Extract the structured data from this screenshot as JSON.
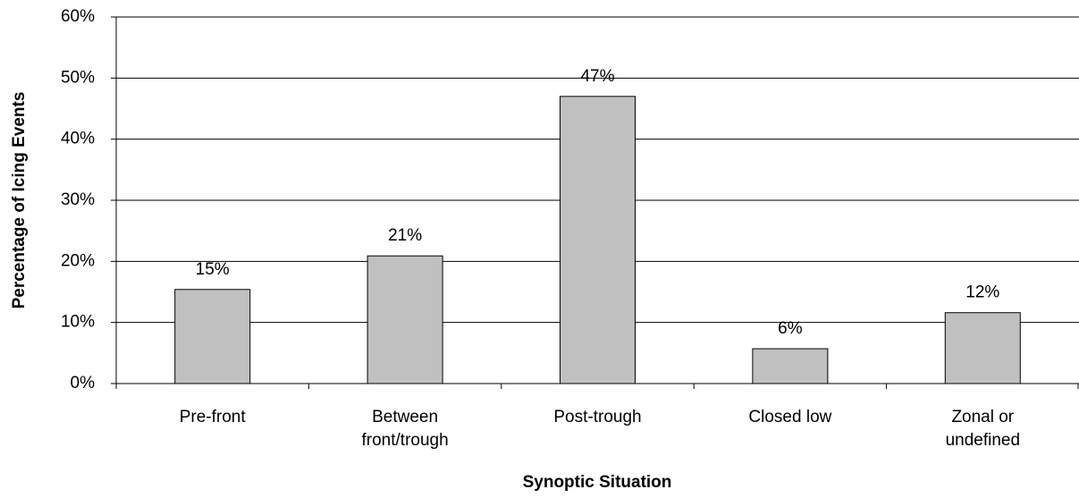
{
  "chart_data": {
    "type": "bar",
    "x_label": "Synoptic Situation",
    "y_label": "Percentage of Icing Events",
    "categories": [
      "Pre-front",
      "Between front/trough",
      "Post-trough",
      "Closed low",
      "Zonal or undefined"
    ],
    "values": [
      15.4,
      20.9,
      47,
      5.7,
      11.6
    ],
    "value_labels": [
      "15%",
      "21%",
      "47%",
      "6%",
      "12%"
    ],
    "color": "#c0c0c0",
    "ylim": [
      0,
      60
    ],
    "yticks": [
      {
        "value": 0,
        "label": "0%"
      },
      {
        "value": 10,
        "label": "10%"
      },
      {
        "value": 20,
        "label": "20%"
      },
      {
        "value": 30,
        "label": "30%"
      },
      {
        "value": 40,
        "label": "40%"
      },
      {
        "value": 50,
        "label": "50%"
      },
      {
        "value": 60,
        "label": "60%"
      }
    ],
    "grid": true
  }
}
